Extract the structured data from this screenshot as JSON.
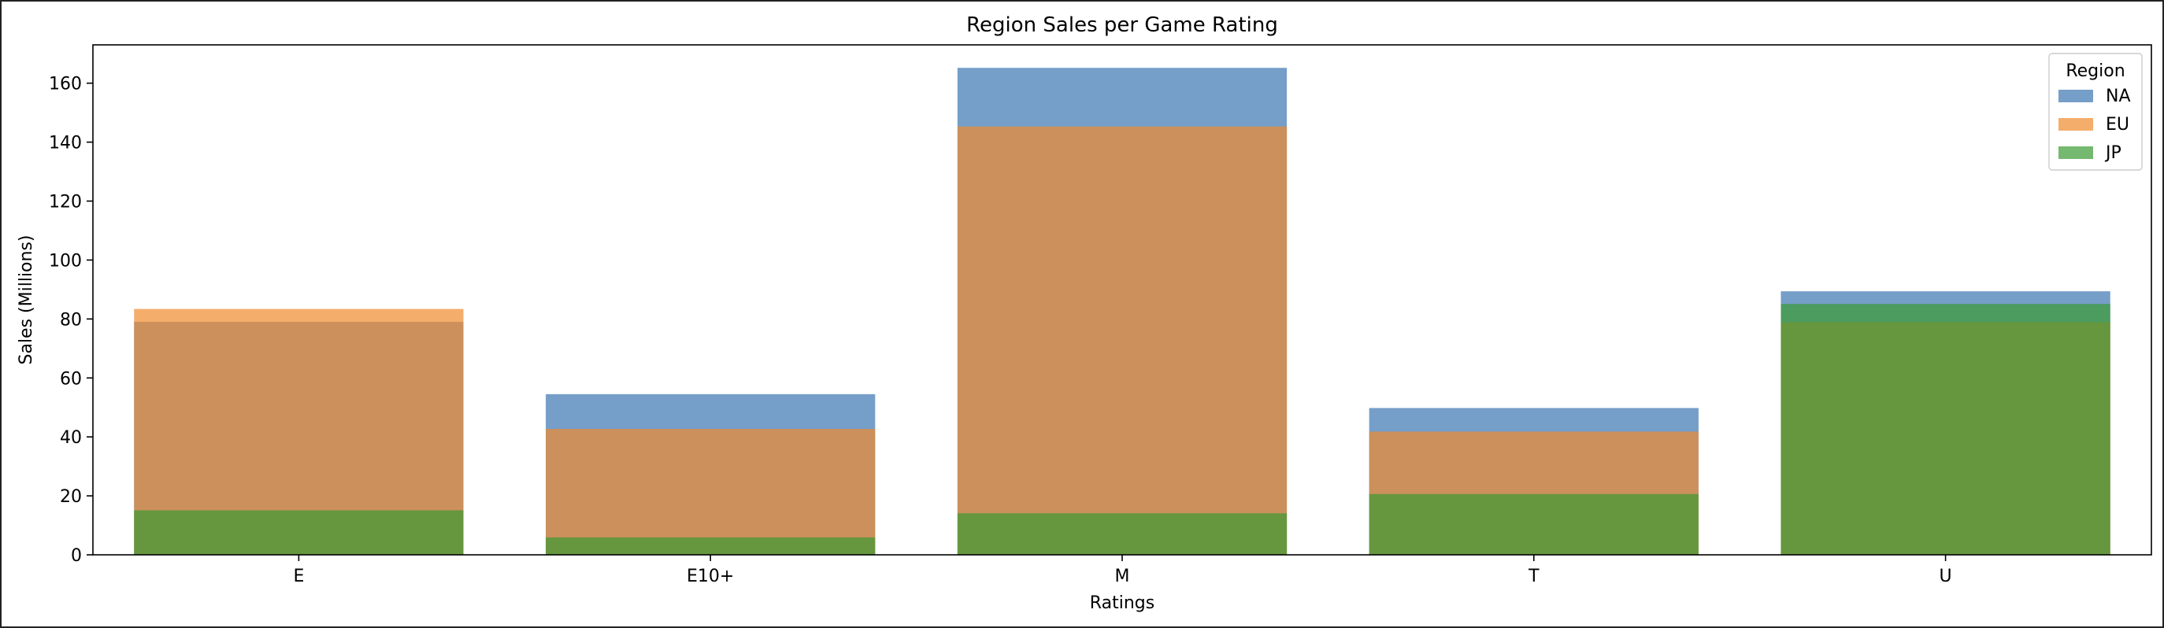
{
  "chart_data": {
    "type": "bar",
    "title": "Region Sales per Game Rating",
    "xlabel": "Ratings",
    "ylabel": "Sales (Millions)",
    "categories": [
      "E",
      "E10+",
      "M",
      "T",
      "U"
    ],
    "ylim": [
      0,
      173
    ],
    "yticks": [
      0,
      20,
      40,
      60,
      80,
      100,
      120,
      140,
      160
    ],
    "bar_mode": "overlaid",
    "bar_opacity": 0.7,
    "series": [
      {
        "name": "NA",
        "color": "#3a75b0",
        "values": [
          79.0,
          54.5,
          165.2,
          49.8,
          89.4
        ]
      },
      {
        "name": "EU",
        "color": "#f08a2c",
        "values": [
          83.4,
          42.7,
          145.3,
          41.8,
          78.9
        ]
      },
      {
        "name": "JP",
        "color": "#3b9a32",
        "values": [
          15.1,
          5.9,
          14.1,
          20.6,
          85.1
        ]
      }
    ],
    "legend": {
      "title": "Region",
      "placement": "top-right"
    },
    "grid": false
  }
}
